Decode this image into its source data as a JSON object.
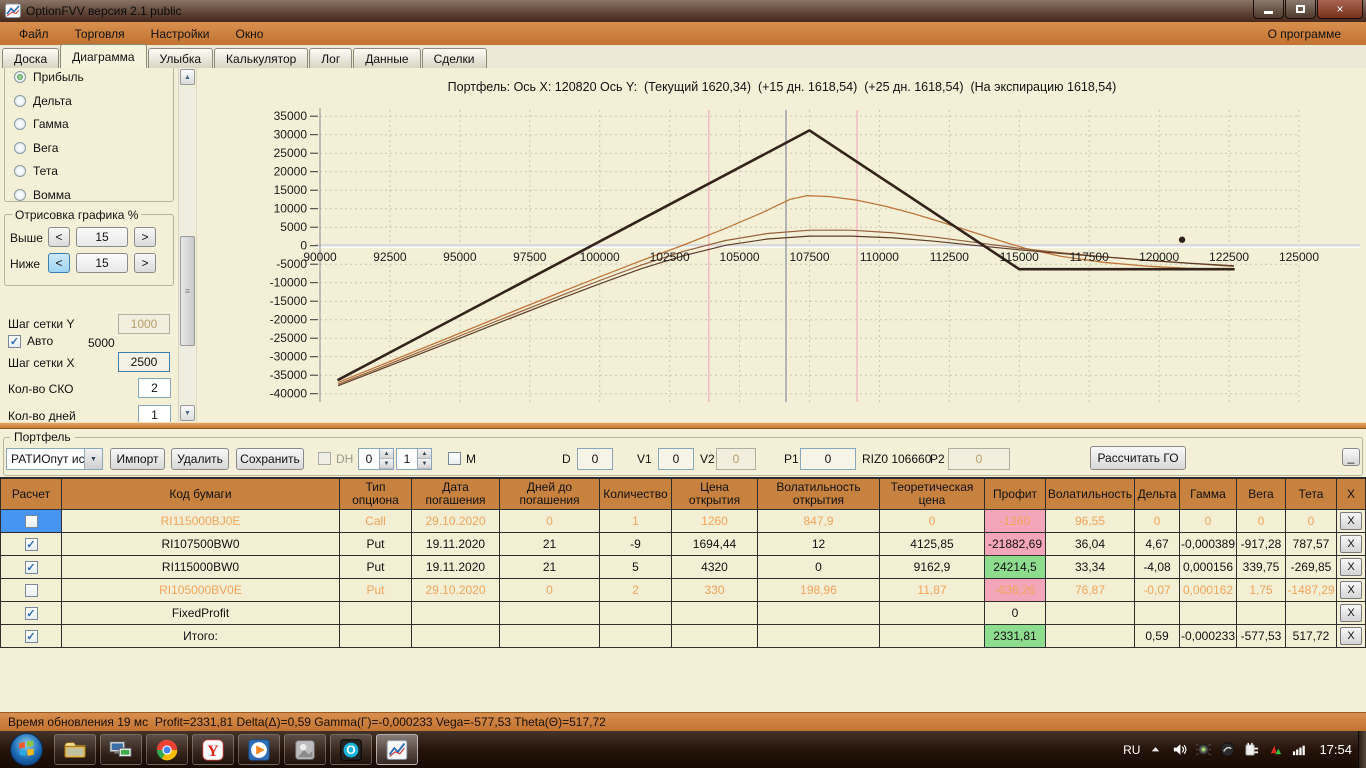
{
  "window": {
    "title": "OptionFVV версия 2.1 public",
    "about_menu": "О программе",
    "close_glyph": "×"
  },
  "menu": {
    "items": [
      "Файл",
      "Торговля",
      "Настройки",
      "Окно"
    ]
  },
  "tabs": {
    "items": [
      {
        "key": "board",
        "label": "Доска",
        "active": false
      },
      {
        "key": "diagram",
        "label": "Диаграмма",
        "active": true
      },
      {
        "key": "smile",
        "label": "Улыбка",
        "active": false
      },
      {
        "key": "calculator",
        "label": "Калькулятор",
        "active": false
      },
      {
        "key": "log",
        "label": "Лог",
        "active": false
      },
      {
        "key": "data",
        "label": "Данные",
        "active": false
      },
      {
        "key": "trades",
        "label": "Сделки",
        "active": false
      }
    ]
  },
  "left_panel": {
    "radios": [
      {
        "key": "profit",
        "label": "Прибыль",
        "selected": true
      },
      {
        "key": "delta",
        "label": "Дельта",
        "selected": false
      },
      {
        "key": "gamma",
        "label": "Гамма",
        "selected": false
      },
      {
        "key": "vega",
        "label": "Вега",
        "selected": false
      },
      {
        "key": "theta",
        "label": "Тета",
        "selected": false
      },
      {
        "key": "vomma",
        "label": "Вомма",
        "selected": false
      }
    ],
    "draw_group": {
      "title": "Отрисовка графика %",
      "dec": "<",
      "inc": ">",
      "above_label": "Выше",
      "above_value": "15",
      "below_label": "Ниже",
      "below_value": "15"
    },
    "grid_y_label": "Шаг сетки Y",
    "grid_y_value": "1000",
    "auto_label": "Авто",
    "auto_value": "5000",
    "grid_x_label": "Шаг сетки X",
    "grid_x_value": "2500",
    "sko_label": "Кол-во СКО",
    "sko_value": "2",
    "days_label": "Кол-во дней",
    "days_value": "1",
    "check_glyph": "✓"
  },
  "chart_data": {
    "type": "line",
    "title": "Портфель: Ось X: 120820 Ось Y:  (Текущий 1620,34)  (+15 дн. 1618,54)  (+25 дн. 1618,54)  (На экспирацию 1618,54)",
    "xlabel": "",
    "ylabel": "",
    "xlim": [
      90000,
      125000
    ],
    "ylim": [
      -40000,
      35000
    ],
    "grid": true,
    "x_ticks": [
      90000,
      92500,
      95000,
      97500,
      100000,
      102500,
      105000,
      107500,
      110000,
      112500,
      115000,
      117500,
      120000,
      122500,
      125000
    ],
    "y_ticks": [
      35000,
      30000,
      25000,
      20000,
      15000,
      10000,
      5000,
      0,
      -5000,
      -10000,
      -15000,
      -20000,
      -25000,
      -30000,
      -35000,
      -40000
    ],
    "vlines": [
      {
        "name": "sko-lower-band",
        "x": 103900,
        "color": "#f2b7c3",
        "width": 1.4
      },
      {
        "name": "current-price-line",
        "x": 106660,
        "color": "#a0a6ad",
        "width": 1.6
      },
      {
        "name": "sko-upper-band",
        "x": 109200,
        "color": "#f2b7c3",
        "width": 1.4
      }
    ],
    "marker": {
      "name": "cursor-point",
      "x": 120820,
      "y": 1620,
      "color": "#30211a"
    },
    "series": [
      {
        "key": "current",
        "name": "Текущий",
        "color": "#c0763a",
        "width": 1.3,
        "points": [
          [
            90660,
            -36900
          ],
          [
            92500,
            -31300
          ],
          [
            94500,
            -25200
          ],
          [
            96500,
            -19000
          ],
          [
            98500,
            -12900
          ],
          [
            100000,
            -8400
          ],
          [
            101500,
            -4000
          ],
          [
            103000,
            200
          ],
          [
            104500,
            4700
          ],
          [
            105800,
            8900
          ],
          [
            106800,
            12500
          ],
          [
            107400,
            13500
          ],
          [
            108200,
            13300
          ],
          [
            109200,
            12300
          ],
          [
            110200,
            10700
          ],
          [
            111200,
            8700
          ],
          [
            112200,
            6400
          ],
          [
            113200,
            4000
          ],
          [
            114200,
            1600
          ],
          [
            115200,
            -700
          ],
          [
            116500,
            -2900
          ],
          [
            118000,
            -4500
          ],
          [
            119500,
            -5500
          ],
          [
            121000,
            -6100
          ],
          [
            122660,
            -6500
          ]
        ]
      },
      {
        "key": "plus15",
        "name": "+15 дн.",
        "color": "#96603a",
        "width": 1.2,
        "points": [
          [
            90660,
            -37400
          ],
          [
            92500,
            -31900
          ],
          [
            94500,
            -25900
          ],
          [
            96500,
            -19800
          ],
          [
            98500,
            -13800
          ],
          [
            100000,
            -9400
          ],
          [
            101500,
            -5200
          ],
          [
            103000,
            -1500
          ],
          [
            104500,
            1400
          ],
          [
            106000,
            3300
          ],
          [
            107500,
            4200
          ],
          [
            109000,
            4200
          ],
          [
            110500,
            3500
          ],
          [
            112000,
            2300
          ],
          [
            113500,
            800
          ],
          [
            115000,
            -700
          ],
          [
            116500,
            -1900
          ],
          [
            118000,
            -3000
          ],
          [
            119500,
            -3900
          ],
          [
            121000,
            -4700
          ],
          [
            122660,
            -5600
          ]
        ]
      },
      {
        "key": "plus25",
        "name": "+25 дн.",
        "color": "#5e3d28",
        "width": 1.2,
        "points": [
          [
            90660,
            -37800
          ],
          [
            92500,
            -32400
          ],
          [
            94500,
            -26500
          ],
          [
            96500,
            -20500
          ],
          [
            98500,
            -14600
          ],
          [
            100000,
            -10300
          ],
          [
            101500,
            -6200
          ],
          [
            103000,
            -2700
          ],
          [
            104500,
            100
          ],
          [
            106000,
            1800
          ],
          [
            107500,
            2600
          ],
          [
            109000,
            2600
          ],
          [
            110500,
            2100
          ],
          [
            112000,
            1200
          ],
          [
            113500,
            0
          ],
          [
            115000,
            -1100
          ],
          [
            116500,
            -2100
          ],
          [
            118000,
            -3000
          ],
          [
            119500,
            -3900
          ],
          [
            121000,
            -4700
          ],
          [
            122660,
            -5400
          ]
        ]
      },
      {
        "key": "expiration",
        "name": "На экспирацию",
        "color": "#33231a",
        "width": 2.6,
        "points": [
          [
            90660,
            -36210
          ],
          [
            107500,
            31150
          ],
          [
            115000,
            -6350
          ],
          [
            122660,
            -6350
          ]
        ]
      }
    ]
  },
  "portfolio": {
    "group_label": "Портфель",
    "combo_value": "РАТИОпут исп",
    "import_button": "Импорт",
    "delete_button": "Удалить",
    "save_button": "Сохранить",
    "dh_label": "DH",
    "spin1_value": "0",
    "spin2_value": "1",
    "m_label": "M",
    "d_label": "D",
    "d_value": "0",
    "v1_label": "V1",
    "v1_value": "0",
    "v2_label": "V2",
    "v2_value": "0",
    "p1_label": "P1",
    "p1_value": "0",
    "riz_label": "RIZ0 106660",
    "p2_label": "P2",
    "p2_value": "0",
    "calc_button": "Рассчитать ГО",
    "corner_button": "_"
  },
  "table": {
    "headers": [
      "Расчет",
      "Код бумаги",
      "Тип\nопциона",
      "Дата\nпогашения",
      "Дней до\nпогашения",
      "Количество",
      "Цена\nоткрытия",
      "Волатильность\nоткрытия",
      "Теоретическая\nцена",
      "Профит",
      "Волатильность",
      "Дельта",
      "Гамма",
      "Вега",
      "Тета",
      "X"
    ],
    "x_button_label": "X",
    "rows": [
      {
        "checked": false,
        "checkbox_selected": true,
        "dimmed": true,
        "profit_bg": "pink",
        "cells": [
          "RI115000BJ0E",
          "Call",
          "29.10.2020",
          "0",
          "1",
          "1260",
          "847,9",
          "0",
          "-1260",
          "96,55",
          "0",
          "0",
          "0",
          "0"
        ]
      },
      {
        "checked": true,
        "checkbox_selected": false,
        "dimmed": false,
        "profit_bg": "pink",
        "cells": [
          "RI107500BW0",
          "Put",
          "19.11.2020",
          "21",
          "-9",
          "1694,44",
          "12",
          "4125,85",
          "-21882,69",
          "36,04",
          "4,67",
          "-0,000389",
          "-917,28",
          "787,57"
        ]
      },
      {
        "checked": true,
        "checkbox_selected": false,
        "dimmed": false,
        "profit_bg": "green",
        "cells": [
          "RI115000BW0",
          "Put",
          "19.11.2020",
          "21",
          "5",
          "4320",
          "0",
          "9162,9",
          "24214,5",
          "33,34",
          "-4,08",
          "0,000156",
          "339,75",
          "-269,85"
        ]
      },
      {
        "checked": false,
        "checkbox_selected": false,
        "dimmed": true,
        "profit_bg": "pink",
        "cells": [
          "RI105000BV0E",
          "Put",
          "29.10.2020",
          "0",
          "2",
          "330",
          "198,96",
          "11,87",
          "-636,26",
          "76,87",
          "-0,07",
          "0,000162",
          "1,75",
          "-1487,29"
        ]
      },
      {
        "checked": true,
        "checkbox_selected": false,
        "dimmed": false,
        "profit_bg": "none",
        "cells": [
          "FixedProfit",
          "",
          "",
          "",
          "",
          "",
          "",
          "",
          "0",
          "",
          "",
          "",
          "",
          ""
        ]
      },
      {
        "checked": true,
        "checkbox_selected": false,
        "dimmed": false,
        "profit_bg": "green",
        "cells": [
          "Итого:",
          "",
          "",
          "",
          "",
          "",
          "",
          "",
          "2331,81",
          "",
          "0,59",
          "-0,000233",
          "-577,53",
          "517,72"
        ]
      }
    ]
  },
  "status_bar": {
    "text": "Время обновления 19 мс  Profit=2331,81 Delta(Δ)=0,59 Gamma(Γ)=-0,000233 Vega=-577,53 Theta(Θ)=517,72"
  },
  "taskbar": {
    "apps": [
      {
        "icon": "explorer",
        "active": false
      },
      {
        "icon": "remote-desktop",
        "active": false
      },
      {
        "icon": "chrome",
        "active": false
      },
      {
        "icon": "yandex-browser",
        "active": false
      },
      {
        "icon": "media-player",
        "active": false
      },
      {
        "icon": "photo-viewer",
        "active": false
      },
      {
        "icon": "opera",
        "active": false
      },
      {
        "icon": "optionfvv",
        "active": true
      }
    ],
    "tray": {
      "language": "RU",
      "time": "17:54",
      "icons": [
        "tray-expand",
        "volume",
        "antivirus",
        "utility",
        "power-plug",
        "network-activity",
        "signal-bars"
      ]
    }
  },
  "colors": {
    "accent_orange": "#c97c3b",
    "table_header": "#c8823f",
    "panel_bg": "#f3f0d7",
    "row_pink": "#f3a6b9",
    "row_green": "#8edc8e",
    "dimmed_text": "#f2a459",
    "selection_blue": "#4695f2"
  }
}
